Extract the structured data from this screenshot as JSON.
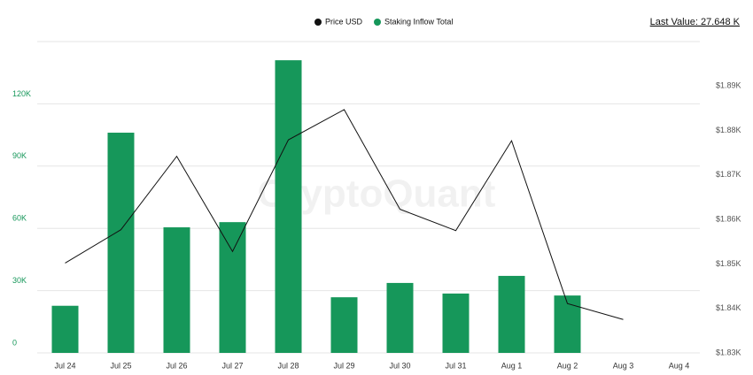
{
  "chart_data": {
    "type": "bar",
    "legend_items": [
      "Price USD",
      "Staking Inflow Total"
    ],
    "last_value": "Last Value: 27.648 K",
    "watermark": "CryptoQuant",
    "categories": [
      "Jul 24",
      "Jul 25",
      "Jul 26",
      "Jul 27",
      "Jul 28",
      "Jul 29",
      "Jul 30",
      "Jul 31",
      "Aug 1",
      "Aug 2",
      "Aug 3",
      "Aug 4"
    ],
    "series": [
      {
        "name": "Staking Inflow Total",
        "type": "bar",
        "color": "#16975a",
        "values": [
          22700,
          106100,
          60500,
          63000,
          141000,
          26800,
          33700,
          28600,
          37100,
          27648,
          null,
          null
        ]
      },
      {
        "name": "Price USD",
        "type": "line",
        "axis": "y2",
        "color": "#111111",
        "values": [
          1850.2,
          1857.7,
          1874.2,
          1852.8,
          1877.9,
          1884.7,
          1862.3,
          1857.5,
          1877.7,
          1841.1,
          1837.5,
          null
        ]
      }
    ],
    "ylim": [
      0,
      150000
    ],
    "yticks": [
      0,
      {
        "value": 30000,
        "label": "30K"
      },
      {
        "value": 60000,
        "label": "60K"
      },
      {
        "value": 90000,
        "label": "90K"
      },
      {
        "value": 120000,
        "label": "120K"
      }
    ],
    "y2lim": [
      1830,
      1900
    ],
    "y2ticks": [
      {
        "value": 1830,
        "label": "$1.83K"
      },
      {
        "value": 1840,
        "label": "$1.84K"
      },
      {
        "value": 1850,
        "label": "$1.85K"
      },
      {
        "value": 1860,
        "label": "$1.86K"
      },
      {
        "value": 1870,
        "label": "$1.87K"
      },
      {
        "value": 1880,
        "label": "$1.88K"
      },
      {
        "value": 1890,
        "label": "$1.89K"
      }
    ],
    "grid": true
  }
}
